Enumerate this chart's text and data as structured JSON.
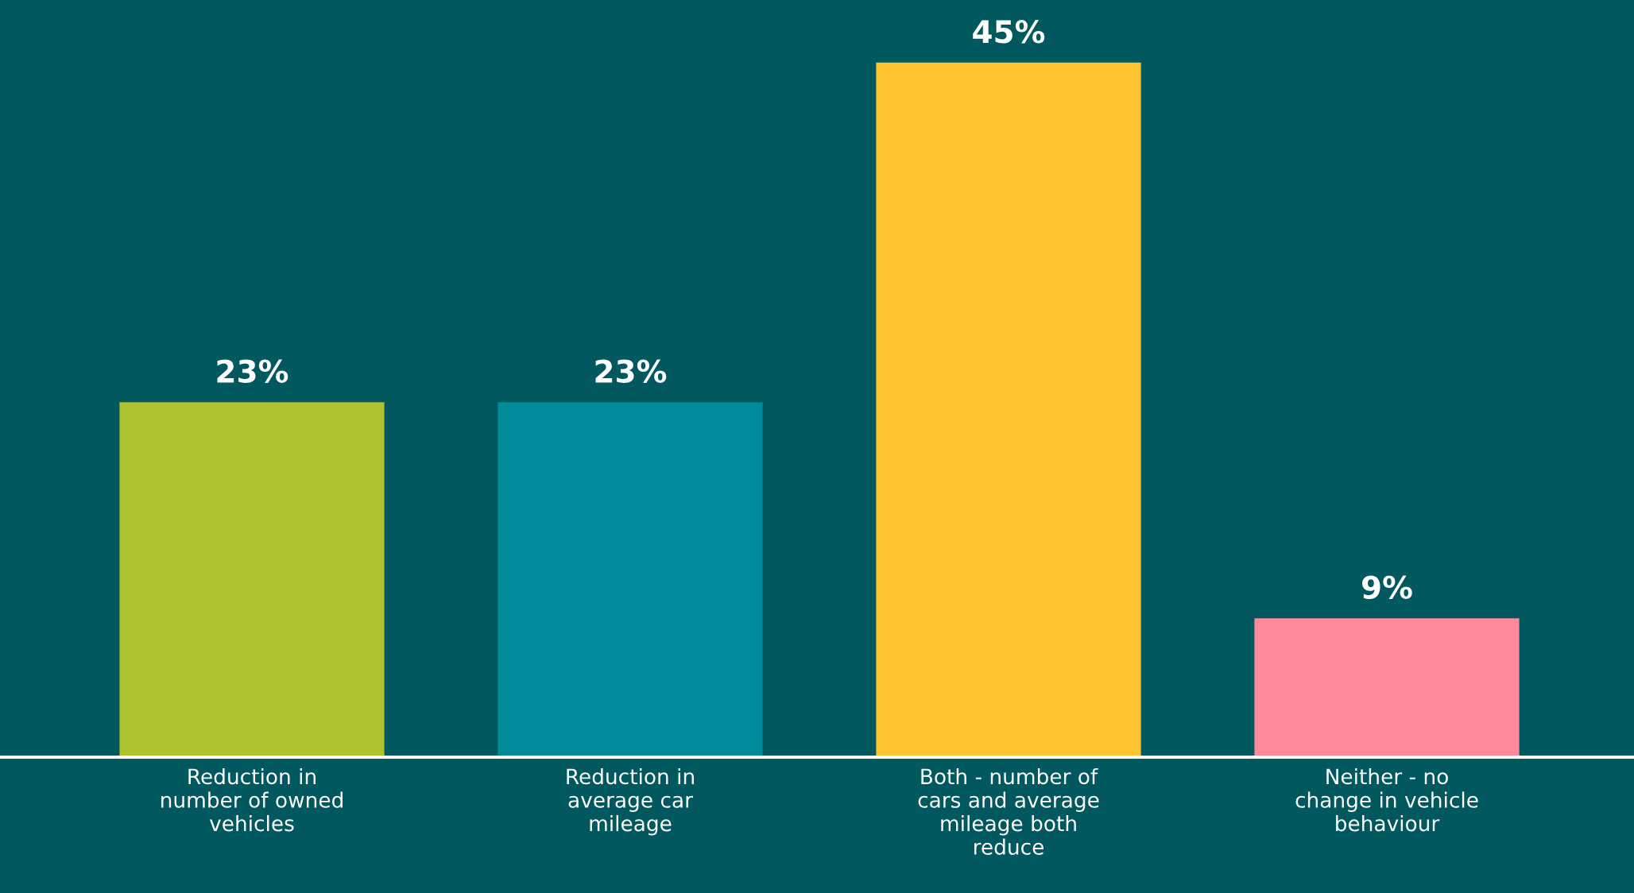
{
  "chart_data": {
    "type": "bar",
    "categories": [
      "Reduction in\nnumber of owned\nvehicles",
      "Reduction in\naverage car\nmileage",
      "Both - number of\ncars and average\nmileage both\nreduce",
      "Neither - no\nchange in vehicle\nbehaviour"
    ],
    "values": [
      23,
      23,
      45,
      9
    ],
    "colors": [
      "#adc22e",
      "#008a9a",
      "#ffc533",
      "#ff8a9a"
    ],
    "value_labels": [
      "23%",
      "23%",
      "45%",
      "9%"
    ],
    "grid": false,
    "legend": false
  }
}
